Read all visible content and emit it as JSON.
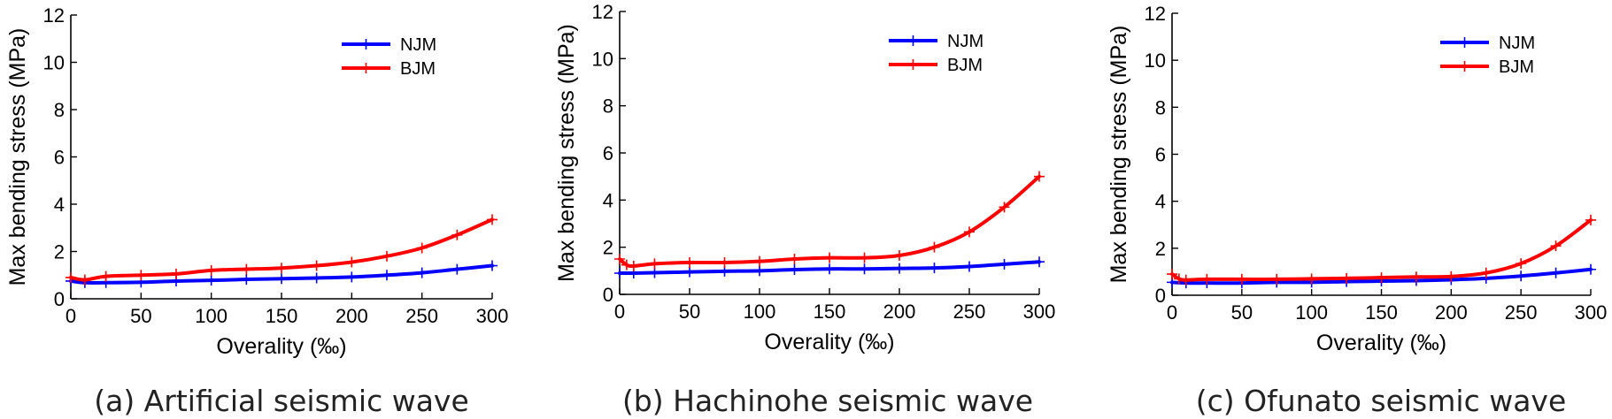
{
  "chart_data": [
    {
      "type": "line",
      "caption": "(a) Artificial seismic wave",
      "xlabel": "Overality (‰)",
      "ylabel": "Max bending stress (MPa)",
      "xlim": [
        0,
        300
      ],
      "ylim": [
        0,
        12
      ],
      "xticks": [
        "0",
        "50",
        "100",
        "150",
        "200",
        "250",
        "300"
      ],
      "yticks": [
        "0",
        "2",
        "4",
        "6",
        "8",
        "10",
        "12"
      ],
      "legend_position": "top-right",
      "grid": false,
      "series": [
        {
          "name": "NJM",
          "color": "#0000ff",
          "x": [
            0,
            10,
            25,
            50,
            75,
            100,
            125,
            150,
            175,
            200,
            225,
            250,
            275,
            300
          ],
          "y": [
            0.75,
            0.68,
            0.68,
            0.7,
            0.75,
            0.78,
            0.82,
            0.85,
            0.88,
            0.92,
            1.0,
            1.1,
            1.25,
            1.4
          ]
        },
        {
          "name": "BJM",
          "color": "#ff0000",
          "x": [
            0,
            10,
            25,
            50,
            75,
            100,
            125,
            150,
            175,
            200,
            225,
            250,
            275,
            300
          ],
          "y": [
            0.9,
            0.8,
            0.95,
            1.0,
            1.05,
            1.2,
            1.25,
            1.3,
            1.4,
            1.55,
            1.8,
            2.15,
            2.7,
            3.35
          ]
        }
      ]
    },
    {
      "type": "line",
      "caption": "(b) Hachinohe seismic wave",
      "xlabel": "Overality (‰)",
      "ylabel": "Max bending stress (MPa)",
      "xlim": [
        0,
        300
      ],
      "ylim": [
        0,
        12
      ],
      "xticks": [
        "0",
        "50",
        "100",
        "150",
        "200",
        "250",
        "300"
      ],
      "yticks": [
        "0",
        "2",
        "4",
        "6",
        "8",
        "10",
        "12"
      ],
      "legend_position": "top-right",
      "grid": false,
      "series": [
        {
          "name": "NJM",
          "color": "#0000ff",
          "x": [
            0,
            10,
            25,
            50,
            75,
            100,
            125,
            150,
            175,
            200,
            225,
            250,
            275,
            300
          ],
          "y": [
            0.9,
            0.9,
            0.92,
            0.95,
            0.98,
            1.0,
            1.05,
            1.08,
            1.08,
            1.1,
            1.12,
            1.18,
            1.28,
            1.38
          ]
        },
        {
          "name": "BJM",
          "color": "#ff0000",
          "x": [
            0,
            5,
            10,
            25,
            50,
            75,
            100,
            125,
            150,
            175,
            200,
            225,
            250,
            275,
            300
          ],
          "y": [
            1.5,
            1.25,
            1.2,
            1.3,
            1.35,
            1.35,
            1.4,
            1.5,
            1.55,
            1.55,
            1.65,
            2.0,
            2.65,
            3.7,
            5.0
          ]
        }
      ]
    },
    {
      "type": "line",
      "caption": "(c) Ofunato seismic wave",
      "xlabel": "Overality (‰)",
      "ylabel": "Max bending stress (MPa)",
      "xlim": [
        0,
        300
      ],
      "ylim": [
        0,
        12
      ],
      "xticks": [
        "0",
        "50",
        "100",
        "150",
        "200",
        "250",
        "300"
      ],
      "yticks": [
        "0",
        "2",
        "4",
        "6",
        "8",
        "10",
        "12"
      ],
      "legend_position": "top-right",
      "grid": false,
      "series": [
        {
          "name": "NJM",
          "color": "#0000ff",
          "x": [
            0,
            10,
            25,
            50,
            75,
            100,
            125,
            150,
            175,
            200,
            225,
            250,
            275,
            300
          ],
          "y": [
            0.55,
            0.52,
            0.52,
            0.52,
            0.55,
            0.55,
            0.58,
            0.6,
            0.62,
            0.66,
            0.72,
            0.82,
            0.95,
            1.1
          ]
        },
        {
          "name": "BJM",
          "color": "#ff0000",
          "x": [
            0,
            5,
            10,
            25,
            50,
            75,
            100,
            125,
            150,
            175,
            200,
            225,
            250,
            275,
            300
          ],
          "y": [
            0.9,
            0.7,
            0.65,
            0.68,
            0.68,
            0.68,
            0.7,
            0.72,
            0.75,
            0.78,
            0.8,
            0.95,
            1.35,
            2.1,
            3.2
          ]
        }
      ]
    }
  ]
}
